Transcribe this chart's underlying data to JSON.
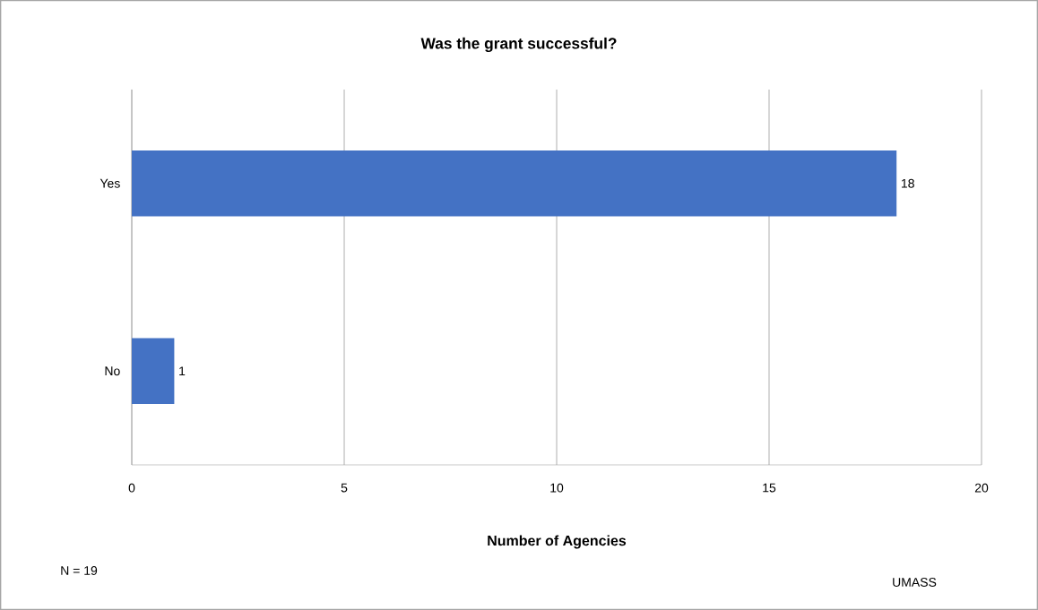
{
  "chart_data": {
    "type": "bar",
    "orientation": "horizontal",
    "title": "Was the grant successful?",
    "xlabel": "Number of Agencies",
    "categories": [
      "Yes",
      "No"
    ],
    "values": [
      18,
      1
    ],
    "color": "#4472c4",
    "data_labels": true,
    "xlim": [
      0,
      20
    ],
    "xticks": [
      0,
      5,
      10,
      15,
      20
    ],
    "grid": "x",
    "annotations": [
      "N = 19",
      "UMASS"
    ]
  }
}
